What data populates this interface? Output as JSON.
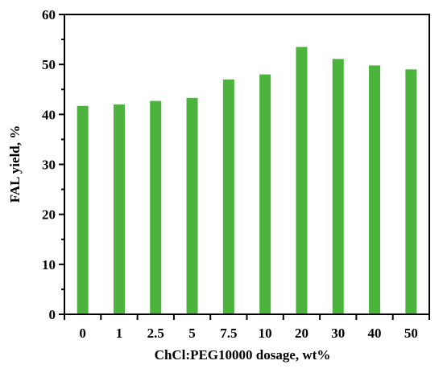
{
  "chart_data": {
    "type": "bar",
    "title": "",
    "xlabel": "ChCl:PEG10000 dosage, wt%",
    "ylabel": "FAL yield, %",
    "categories": [
      "0",
      "1",
      "2.5",
      "5",
      "7.5",
      "10",
      "20",
      "30",
      "40",
      "50"
    ],
    "values": [
      41.7,
      42.0,
      42.7,
      43.3,
      47.0,
      48.0,
      53.5,
      51.1,
      49.8,
      49.0
    ],
    "ylim": [
      0,
      60
    ],
    "yticks": [
      0,
      10,
      20,
      30,
      40,
      50,
      60
    ],
    "grid": false,
    "legend": "none",
    "colors": {
      "bar": "#4cb43c",
      "axis": "#000000"
    }
  }
}
